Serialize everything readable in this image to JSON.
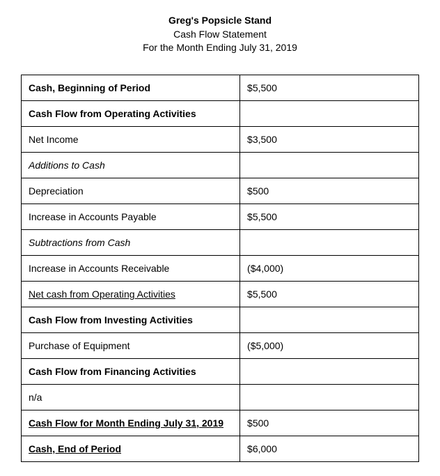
{
  "header": {
    "company": "Greg's Popsicle Stand",
    "statement_type": "Cash Flow Statement",
    "period": "For the Month Ending July 31, 2019"
  },
  "rows": [
    {
      "label": "Cash, Beginning of Period",
      "value": "$5,500",
      "label_style": "bold"
    },
    {
      "label": "Cash Flow from Operating Activities",
      "value": "",
      "label_style": "bold"
    },
    {
      "label": "Net Income",
      "value": "$3,500",
      "label_style": ""
    },
    {
      "label": "Additions to Cash",
      "value": "",
      "label_style": "italic"
    },
    {
      "label": "Depreciation",
      "value": "$500",
      "label_style": ""
    },
    {
      "label": "Increase in Accounts Payable",
      "value": "$5,500",
      "label_style": ""
    },
    {
      "label": "Subtractions from Cash",
      "value": "",
      "label_style": "italic"
    },
    {
      "label": "Increase in Accounts Receivable",
      "value": "($4,000)",
      "label_style": ""
    },
    {
      "label": "Net cash from Operating Activities",
      "value": "$5,500",
      "label_style": "underline"
    },
    {
      "label": "Cash Flow from Investing Activities",
      "value": "",
      "label_style": "bold"
    },
    {
      "label": "Purchase of Equipment",
      "value": "($5,000)",
      "label_style": ""
    },
    {
      "label": "Cash Flow from Financing Activities",
      "value": "",
      "label_style": "bold"
    },
    {
      "label": "n/a",
      "value": "",
      "label_style": ""
    },
    {
      "label": "Cash Flow for Month Ending July 31, 2019",
      "value": "$500",
      "label_style": "bold underline"
    },
    {
      "label": "Cash, End of Period",
      "value": "$6,000",
      "label_style": "bold underline"
    }
  ],
  "colors": {
    "background": "#ffffff",
    "text": "#000000",
    "border": "#000000"
  }
}
